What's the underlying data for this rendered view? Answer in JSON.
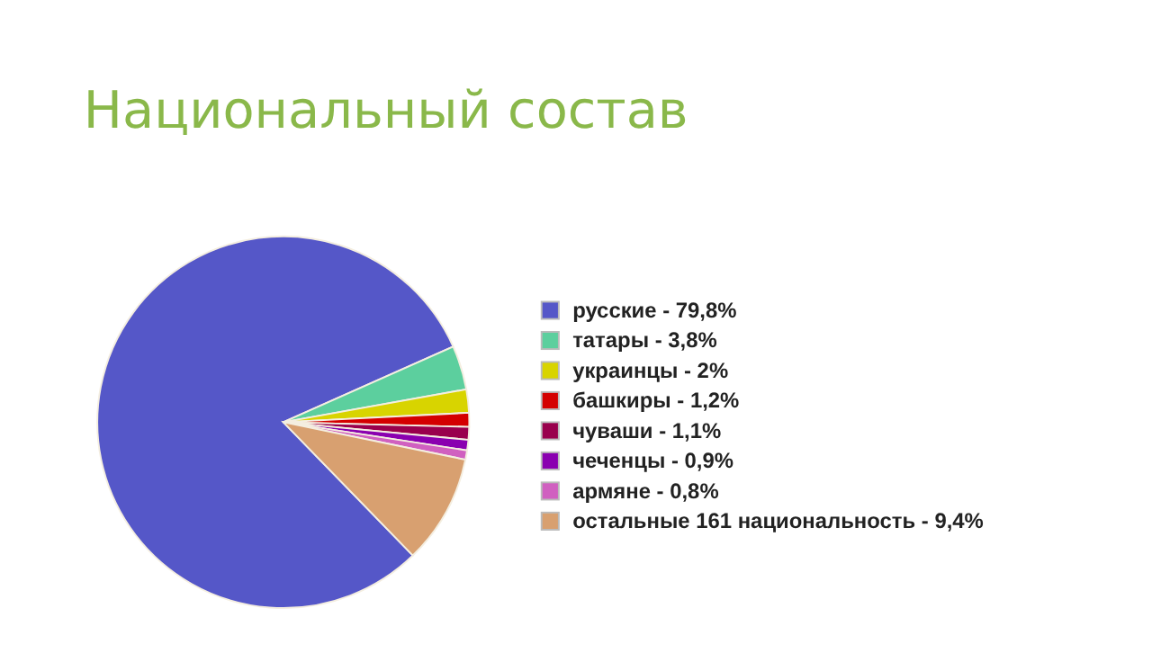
{
  "chart_data": {
    "type": "pie",
    "title": "Национальный состав",
    "categories": [
      "русские  - 79,8%",
      "татары - 3,8%",
      "украинцы - 2%",
      "башкиры - 1,2%",
      "чуваши - 1,1%",
      "чеченцы - 0,9%",
      "армяне - 0,8%",
      "остальные 161 национальность - 9,4%"
    ],
    "values": [
      79.8,
      3.8,
      2,
      1.2,
      1.1,
      0.9,
      0.8,
      9.4
    ],
    "colors": [
      "#5557c8",
      "#5ccf9e",
      "#d8d400",
      "#d40000",
      "#99004d",
      "#8a00b0",
      "#d060c0",
      "#d8a070"
    ],
    "legend": "right"
  }
}
